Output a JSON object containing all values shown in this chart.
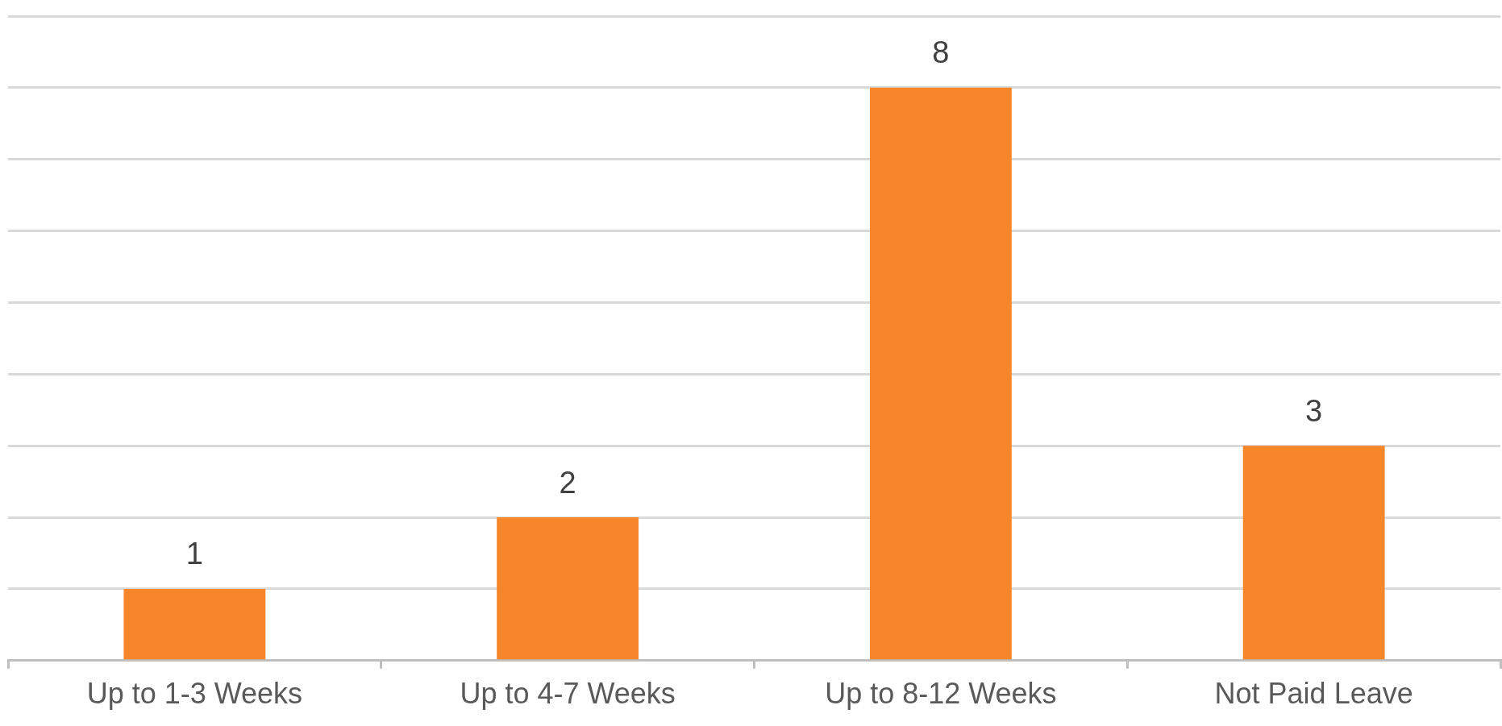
{
  "chart_data": {
    "type": "bar",
    "categories": [
      "Up to 1-3 Weeks",
      "Up to 4-7 Weeks",
      "Up to 8-12 Weeks",
      "Not Paid Leave"
    ],
    "values": [
      1,
      2,
      8,
      3
    ],
    "color": "#f7862a",
    "ylim": [
      0,
      9
    ],
    "yticks": [
      {
        "value": 0,
        "label": null
      },
      {
        "value": 1,
        "label": null
      },
      {
        "value": 2,
        "label": null
      },
      {
        "value": 3,
        "label": null
      },
      {
        "value": 4,
        "label": null
      },
      {
        "value": 5,
        "label": null
      },
      {
        "value": 6,
        "label": null
      },
      {
        "value": 7,
        "label": null
      },
      {
        "value": 8,
        "label": null
      },
      {
        "value": 9,
        "label": null
      }
    ],
    "grid": "y",
    "legend": false,
    "tick_labels": "x",
    "data_labels": true
  }
}
